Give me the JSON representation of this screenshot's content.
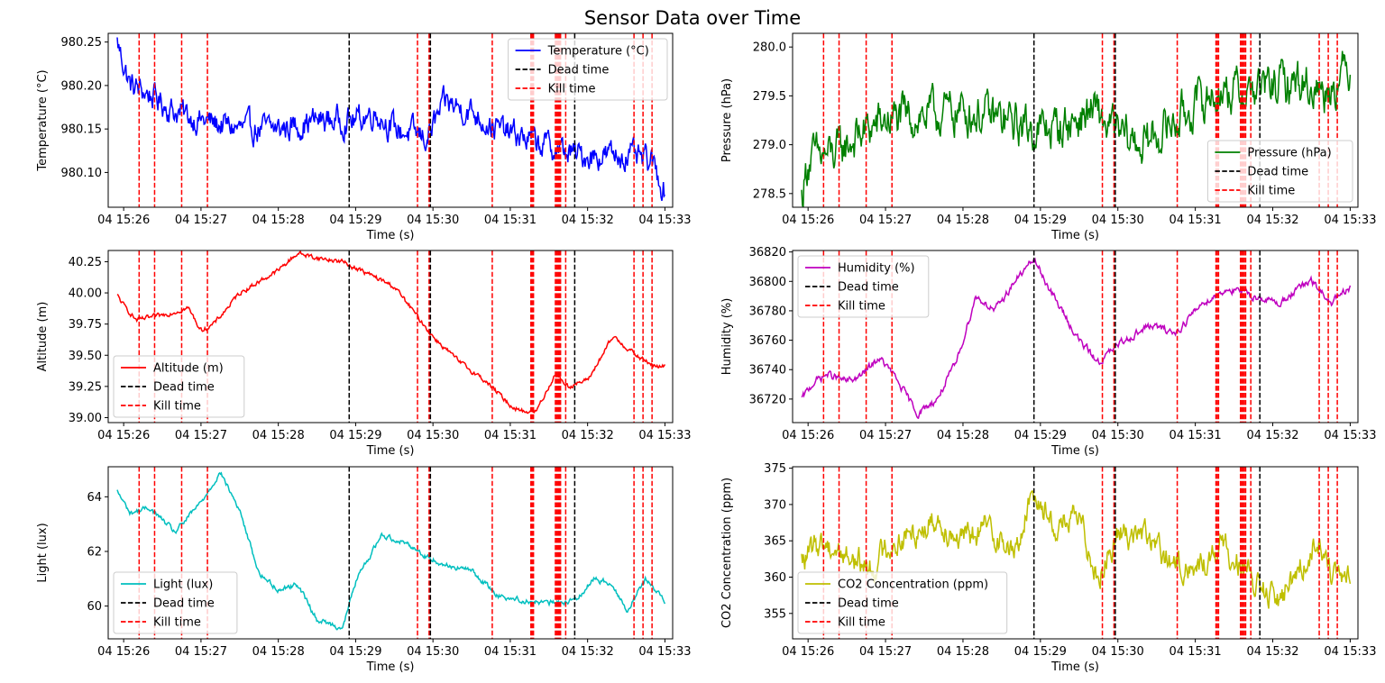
{
  "title": "Sensor Data over Time",
  "colors": {
    "temperature": "#0000ff",
    "pressure": "#008000",
    "altitude": "#ff0000",
    "humidity": "#bf00bf",
    "light": "#00bfbf",
    "co2": "#bfbf00",
    "dead_time": "#000000",
    "kill_time": "#ff0000"
  },
  "chart_data": [
    {
      "type": "line",
      "color": "temperature",
      "xlabel": "Time (s)",
      "ylabel": "Temperature (°C)",
      "ylim": [
        980.06,
        980.26
      ],
      "yticks": [
        980.1,
        980.15,
        980.2,
        980.25
      ],
      "ytick_decimals": 2,
      "legend_position": "upper-right",
      "legend": [
        "Temperature (°C)",
        "Dead time",
        "Kill time"
      ],
      "series": [
        {
          "name": "Temperature (°C)",
          "points": [
            [
              "15:25:55",
              980.25
            ],
            [
              "15:26:05",
              980.2
            ],
            [
              "15:26:20",
              980.19
            ],
            [
              "15:26:40",
              980.17
            ],
            [
              "15:27:00",
              980.16
            ],
            [
              "15:27:30",
              980.15
            ],
            [
              "15:28:00",
              980.15
            ],
            [
              "15:28:30",
              980.16
            ],
            [
              "15:29:00",
              980.16
            ],
            [
              "15:29:15",
              980.17
            ],
            [
              "15:29:30",
              980.15
            ],
            [
              "15:29:55",
              980.14
            ],
            [
              "15:30:10",
              980.18
            ],
            [
              "15:30:30",
              980.17
            ],
            [
              "15:30:50",
              980.15
            ],
            [
              "15:31:10",
              980.14
            ],
            [
              "15:31:30",
              980.13
            ],
            [
              "15:31:50",
              980.12
            ],
            [
              "15:32:10",
              980.12
            ],
            [
              "15:32:30",
              980.12
            ],
            [
              "15:32:50",
              980.11
            ],
            [
              "15:33:00",
              980.08
            ]
          ],
          "noise": 0.025
        }
      ]
    },
    {
      "type": "line",
      "color": "pressure",
      "xlabel": "Time (s)",
      "ylabel": "Pressure (hPa)",
      "ylim": [
        278.36,
        280.14
      ],
      "yticks": [
        278.5,
        279.0,
        279.5,
        280.0
      ],
      "ytick_decimals": 1,
      "legend_position": "lower-right",
      "legend": [
        "Pressure (hPa)",
        "Dead time",
        "Kill time"
      ],
      "series": [
        {
          "name": "Pressure (hPa)",
          "points": [
            [
              "15:25:55",
              278.45
            ],
            [
              "15:26:00",
              278.85
            ],
            [
              "15:26:20",
              278.9
            ],
            [
              "15:26:40",
              279.1
            ],
            [
              "15:27:00",
              279.25
            ],
            [
              "15:27:30",
              279.3
            ],
            [
              "15:28:00",
              279.35
            ],
            [
              "15:28:30",
              279.25
            ],
            [
              "15:29:00",
              279.15
            ],
            [
              "15:29:20",
              279.2
            ],
            [
              "15:29:40",
              279.35
            ],
            [
              "15:30:00",
              279.1
            ],
            [
              "15:30:20",
              279.0
            ],
            [
              "15:30:40",
              279.2
            ],
            [
              "15:31:00",
              279.4
            ],
            [
              "15:31:20",
              279.55
            ],
            [
              "15:31:40",
              279.55
            ],
            [
              "15:32:00",
              279.6
            ],
            [
              "15:32:20",
              279.65
            ],
            [
              "15:32:40",
              279.55
            ],
            [
              "15:33:00",
              279.8
            ]
          ],
          "noise": 0.35
        }
      ]
    },
    {
      "type": "line",
      "color": "altitude",
      "xlabel": "Time (s)",
      "ylabel": "Altitude (m)",
      "ylim": [
        38.96,
        40.34
      ],
      "yticks": [
        39.0,
        39.25,
        39.5,
        39.75,
        40.0,
        40.25
      ],
      "ytick_decimals": 2,
      "legend_position": "lower-left",
      "legend": [
        "Altitude (m)",
        "Dead time",
        "Kill time"
      ],
      "series": [
        {
          "name": "Altitude (m)",
          "points": [
            [
              "15:25:55",
              39.98
            ],
            [
              "15:26:00",
              39.9
            ],
            [
              "15:26:10",
              39.78
            ],
            [
              "15:26:30",
              39.82
            ],
            [
              "15:26:50",
              39.88
            ],
            [
              "15:27:00",
              39.7
            ],
            [
              "15:27:10",
              39.75
            ],
            [
              "15:27:30",
              40.0
            ],
            [
              "15:28:00",
              40.18
            ],
            [
              "15:28:15",
              40.32
            ],
            [
              "15:28:30",
              40.28
            ],
            [
              "15:28:50",
              40.25
            ],
            [
              "15:29:10",
              40.15
            ],
            [
              "15:29:30",
              40.05
            ],
            [
              "15:29:45",
              39.85
            ],
            [
              "15:30:00",
              39.65
            ],
            [
              "15:30:20",
              39.45
            ],
            [
              "15:30:40",
              39.3
            ],
            [
              "15:31:00",
              39.1
            ],
            [
              "15:31:10",
              39.05
            ],
            [
              "15:31:20",
              39.05
            ],
            [
              "15:31:35",
              39.35
            ],
            [
              "15:31:45",
              39.25
            ],
            [
              "15:32:00",
              39.3
            ],
            [
              "15:32:20",
              39.65
            ],
            [
              "15:32:40",
              39.48
            ],
            [
              "15:32:55",
              39.4
            ],
            [
              "15:33:00",
              39.42
            ]
          ],
          "noise": 0.03
        }
      ]
    },
    {
      "type": "line",
      "color": "humidity",
      "xlabel": "Time (s)",
      "ylabel": "Humidity (%)",
      "ylim": [
        36704,
        36821
      ],
      "yticks": [
        36720,
        36740,
        36760,
        36780,
        36800,
        36820
      ],
      "ytick_decimals": 0,
      "legend_position": "upper-left",
      "legend": [
        "Humidity (%)",
        "Dead time",
        "Kill time"
      ],
      "series": [
        {
          "name": "Humidity (%)",
          "points": [
            [
              "15:25:55",
              36720
            ],
            [
              "15:26:05",
              36732
            ],
            [
              "15:26:15",
              36737
            ],
            [
              "15:26:30",
              36732
            ],
            [
              "15:26:40",
              36735
            ],
            [
              "15:26:55",
              36748
            ],
            [
              "15:27:05",
              36738
            ],
            [
              "15:27:25",
              36710
            ],
            [
              "15:27:40",
              36720
            ],
            [
              "15:27:55",
              36745
            ],
            [
              "15:28:10",
              36790
            ],
            [
              "15:28:25",
              36780
            ],
            [
              "15:28:40",
              36800
            ],
            [
              "15:28:55",
              36815
            ],
            [
              "15:29:10",
              36790
            ],
            [
              "15:29:30",
              36760
            ],
            [
              "15:29:45",
              36745
            ],
            [
              "15:30:05",
              36760
            ],
            [
              "15:30:25",
              36770
            ],
            [
              "15:30:45",
              36765
            ],
            [
              "15:31:05",
              36785
            ],
            [
              "15:31:25",
              36795
            ],
            [
              "15:31:45",
              36790
            ],
            [
              "15:32:05",
              36785
            ],
            [
              "15:32:20",
              36795
            ],
            [
              "15:32:30",
              36800
            ],
            [
              "15:32:45",
              36785
            ],
            [
              "15:33:00",
              36795
            ]
          ],
          "noise": 4
        }
      ]
    },
    {
      "type": "line",
      "color": "light",
      "xlabel": "Time (s)",
      "ylabel": "Light (lux)",
      "ylim": [
        58.8,
        65.1
      ],
      "yticks": [
        60,
        62,
        64
      ],
      "ytick_decimals": 0,
      "legend_position": "lower-left",
      "legend": [
        "Light (lux)",
        "Dead time",
        "Kill time"
      ],
      "series": [
        {
          "name": "Light (lux)",
          "points": [
            [
              "15:25:55",
              64.2
            ],
            [
              "15:26:05",
              63.4
            ],
            [
              "15:26:20",
              63.6
            ],
            [
              "15:26:40",
              62.7
            ],
            [
              "15:27:00",
              63.8
            ],
            [
              "15:27:15",
              64.9
            ],
            [
              "15:27:30",
              63.5
            ],
            [
              "15:27:45",
              61.2
            ],
            [
              "15:28:00",
              60.6
            ],
            [
              "15:28:15",
              60.8
            ],
            [
              "15:28:30",
              59.5
            ],
            [
              "15:28:50",
              59.2
            ],
            [
              "15:29:00",
              60.9
            ],
            [
              "15:29:20",
              62.6
            ],
            [
              "15:29:40",
              62.3
            ],
            [
              "15:29:55",
              61.8
            ],
            [
              "15:30:10",
              61.5
            ],
            [
              "15:30:30",
              61.3
            ],
            [
              "15:30:50",
              60.4
            ],
            [
              "15:31:10",
              60.2
            ],
            [
              "15:31:30",
              60.1
            ],
            [
              "15:31:50",
              60.2
            ],
            [
              "15:32:05",
              61.0
            ],
            [
              "15:32:20",
              60.8
            ],
            [
              "15:32:30",
              59.8
            ],
            [
              "15:32:45",
              61.0
            ],
            [
              "15:33:00",
              60.2
            ]
          ],
          "noise": 0.15
        }
      ]
    },
    {
      "type": "line",
      "color": "co2",
      "xlabel": "Time (s)",
      "ylabel": "CO2 Concentration (ppm)",
      "ylim": [
        351.5,
        375.2
      ],
      "yticks": [
        355,
        360,
        365,
        370,
        375
      ],
      "ytick_decimals": 0,
      "legend_position": "lower-left",
      "legend": [
        "CO2 Concentration (ppm)",
        "Dead time",
        "Kill time"
      ],
      "series": [
        {
          "name": "CO2 Concentration (ppm)",
          "points": [
            [
              "15:25:55",
              362
            ],
            [
              "15:26:10",
              365
            ],
            [
              "15:26:30",
              363
            ],
            [
              "15:26:50",
              361
            ],
            [
              "15:27:00",
              364
            ],
            [
              "15:27:20",
              366
            ],
            [
              "15:27:40",
              368
            ],
            [
              "15:28:00",
              365
            ],
            [
              "15:28:20",
              367
            ],
            [
              "15:28:40",
              363
            ],
            [
              "15:28:55",
              372
            ],
            [
              "15:29:10",
              367
            ],
            [
              "15:29:30",
              368
            ],
            [
              "15:29:45",
              360
            ],
            [
              "15:30:00",
              366
            ],
            [
              "15:30:20",
              366
            ],
            [
              "15:30:40",
              362
            ],
            [
              "15:31:00",
              361
            ],
            [
              "15:31:20",
              364
            ],
            [
              "15:31:35",
              362
            ],
            [
              "15:31:50",
              358
            ],
            [
              "15:32:05",
              357
            ],
            [
              "15:32:20",
              361
            ],
            [
              "15:32:35",
              365
            ],
            [
              "15:32:50",
              359
            ],
            [
              "15:33:00",
              360
            ]
          ],
          "noise": 3
        }
      ]
    }
  ],
  "x_axis": {
    "tmin": "15:25:48",
    "tmax": "15:33:06",
    "ticks": [
      "15:26",
      "15:27",
      "15:28",
      "15:29",
      "15:30",
      "15:31",
      "15:32",
      "15:33"
    ],
    "tick_labels": [
      "04 15:26",
      "04 15:27",
      "04 15:28",
      "04 15:29",
      "04 15:30",
      "04 15:31",
      "04 15:32",
      "04 15:33"
    ]
  },
  "dead_times": [
    "15:28:55",
    "15:29:58",
    "15:31:50"
  ],
  "kill_times": [
    "15:26:12",
    "15:26:24",
    "15:26:45",
    "15:27:05",
    "15:29:48",
    "15:29:57",
    "15:30:46",
    "15:31:16",
    "15:31:17",
    "15:31:18",
    "15:31:35",
    "15:31:36",
    "15:31:37",
    "15:31:38",
    "15:31:39",
    "15:31:43",
    "15:32:36",
    "15:32:43",
    "15:32:50"
  ]
}
